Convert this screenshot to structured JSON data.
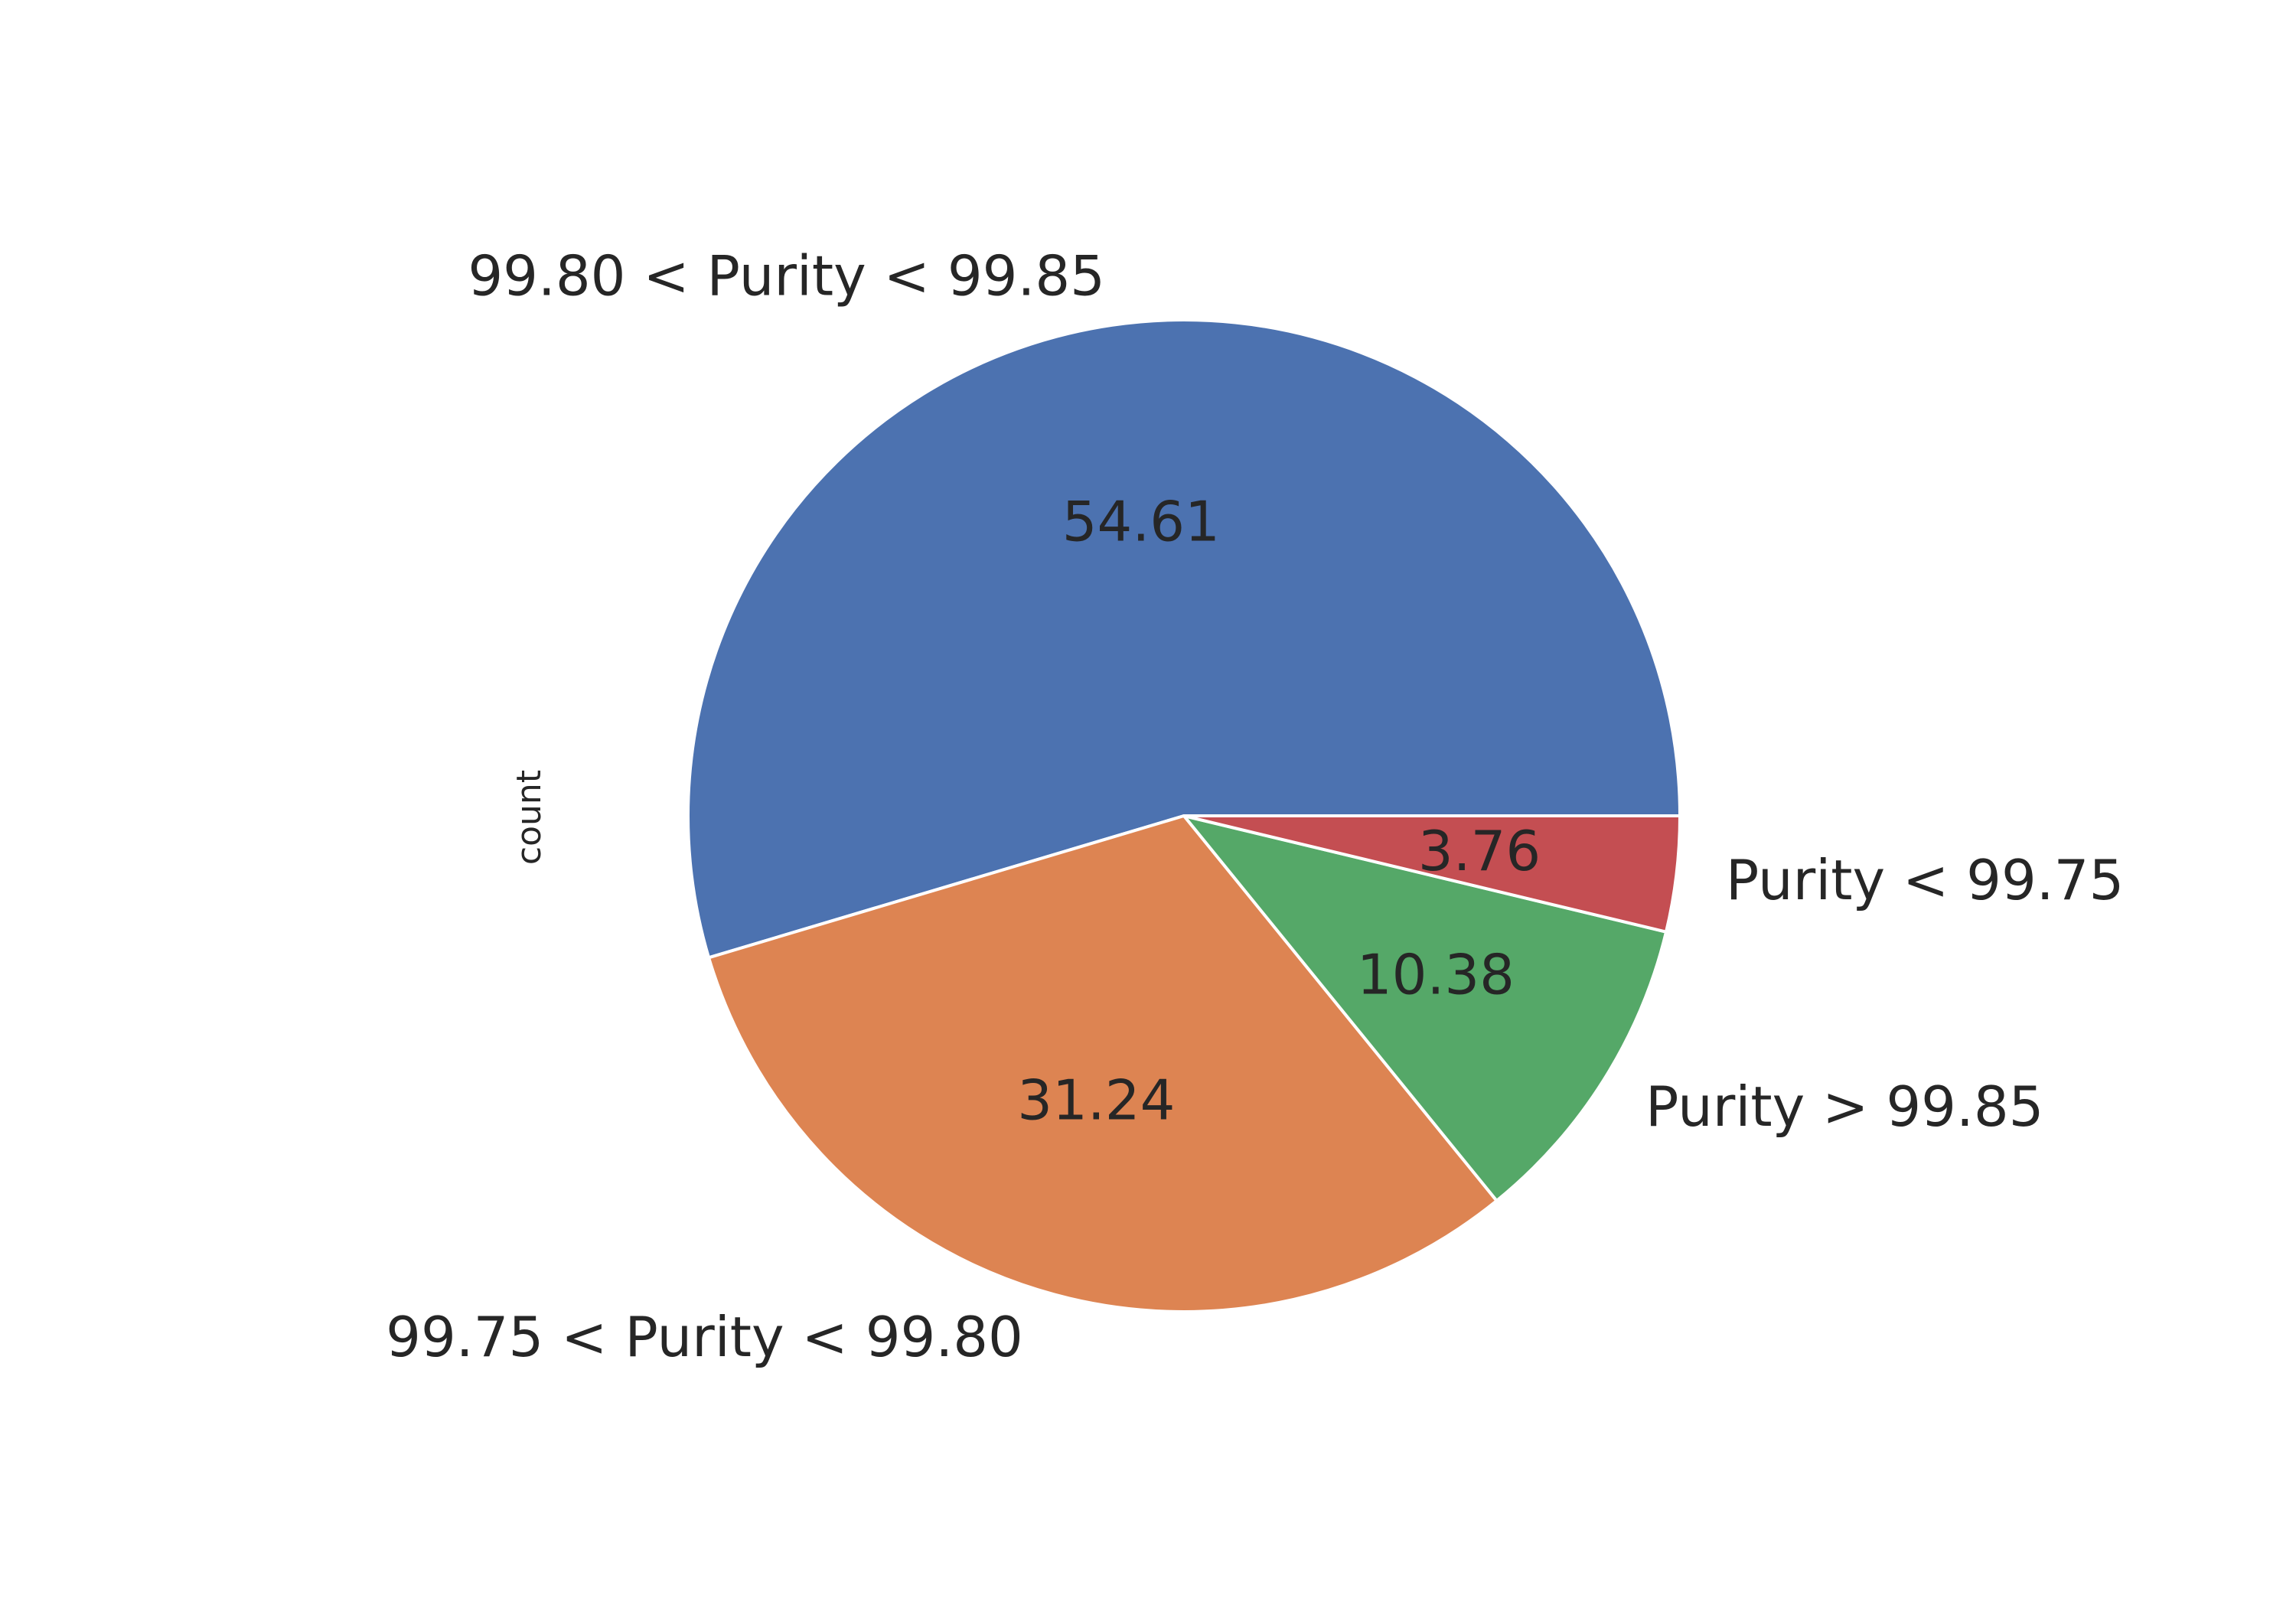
{
  "chart_data": {
    "type": "pie",
    "ylabel": "count",
    "categories": [
      "99.80 < Purity < 99.85",
      "99.75 < Purity < 99.80",
      "Purity > 99.85",
      "Purity < 99.75"
    ],
    "values": [
      54.61,
      31.24,
      10.38,
      3.76
    ],
    "value_labels": [
      "54.61",
      "31.24",
      "10.38",
      "3.76"
    ],
    "colors": [
      "#4c72b0",
      "#dd8452",
      "#55a868",
      "#c44e52"
    ],
    "start_angle_deg": 0,
    "direction": "counterclockwise"
  }
}
